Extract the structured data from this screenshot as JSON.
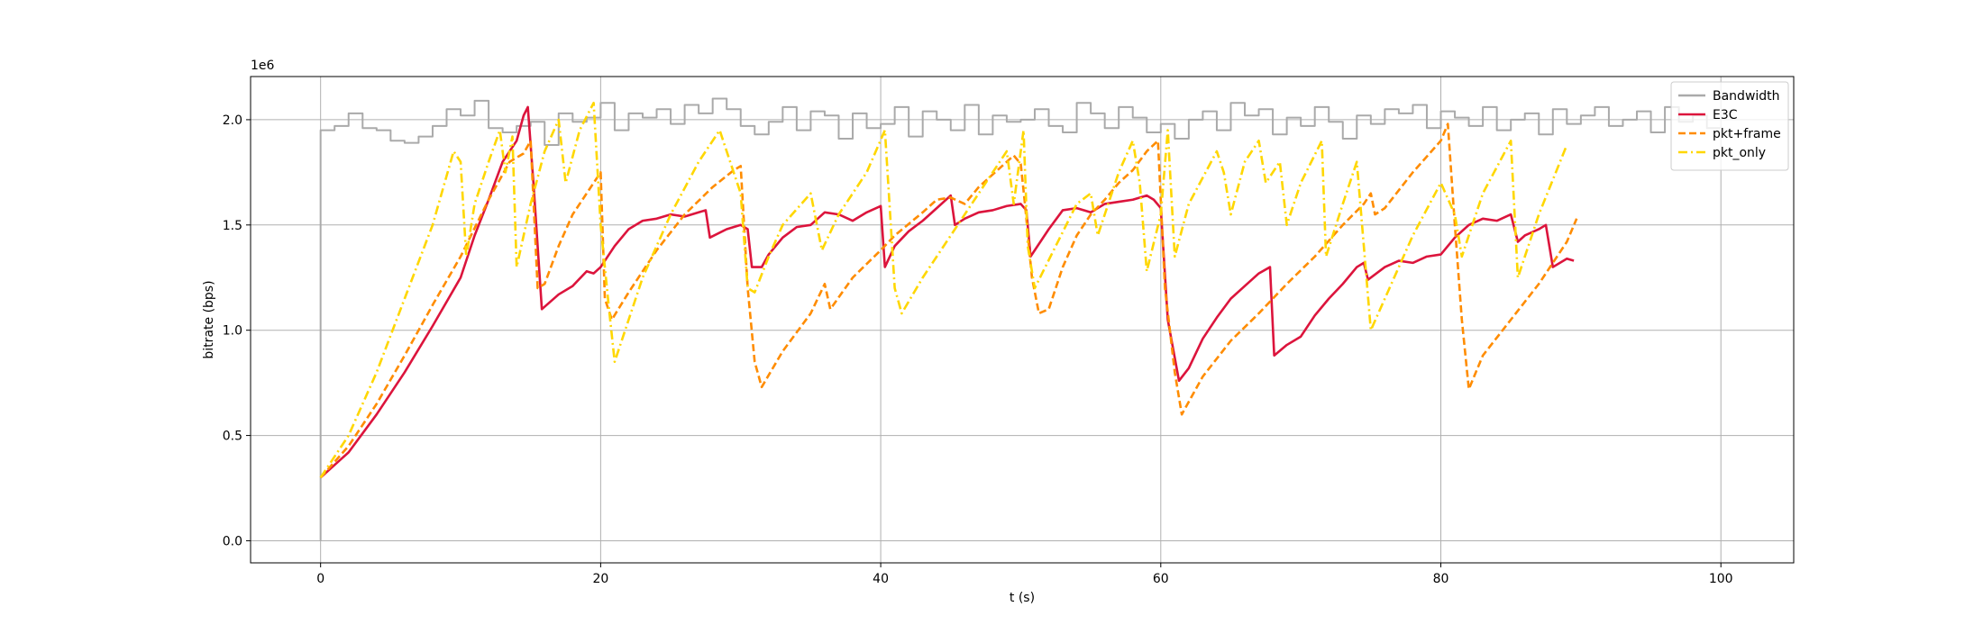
{
  "chart_data": {
    "type": "line",
    "x_label": "t (s)",
    "y_label": "bitrate (bps)",
    "y_offset_label": "1e6",
    "xlim": [
      -5,
      105.2
    ],
    "xticks": [
      0,
      20,
      40,
      60,
      80,
      100
    ],
    "ylim": [
      -0.105,
      2.205
    ],
    "yticks": [
      {
        "value": 0,
        "label": "0.0"
      },
      {
        "value": 0.5,
        "label": "0.5"
      },
      {
        "value": 1,
        "label": "1.0"
      },
      {
        "value": 1.5,
        "label": "1.5"
      },
      {
        "value": 2,
        "label": "2.0"
      }
    ],
    "grid": true,
    "legend": "upper right",
    "series": [
      {
        "name": "Bandwidth",
        "color": "#aaaaaa",
        "linestyle": "solid",
        "drawstyle": "steps-post",
        "x": [
          0,
          0,
          1,
          2,
          3,
          4,
          5,
          6,
          7,
          8,
          9,
          10,
          11,
          12,
          13,
          14,
          15,
          16,
          17,
          18,
          19,
          20,
          21,
          22,
          23,
          24,
          25,
          26,
          27,
          28,
          29,
          30,
          31,
          32,
          33,
          34,
          35,
          36,
          37,
          38,
          39,
          40,
          41,
          42,
          43,
          44,
          45,
          46,
          47,
          48,
          49,
          50,
          51,
          52,
          53,
          54,
          55,
          56,
          57,
          58,
          59,
          60,
          61,
          62,
          63,
          64,
          65,
          66,
          67,
          68,
          69,
          70,
          71,
          72,
          73,
          74,
          75,
          76,
          77,
          78,
          79,
          80,
          81,
          82,
          83,
          84,
          85,
          86,
          87,
          88,
          89,
          90,
          91,
          92,
          93,
          94,
          95,
          96,
          97,
          98,
          99,
          100
        ],
        "values": [
          0,
          1.95,
          1.97,
          2.03,
          1.96,
          1.95,
          1.9,
          1.89,
          1.92,
          1.97,
          2.05,
          2.02,
          2.09,
          1.96,
          1.94,
          1.97,
          1.99,
          1.88,
          2.03,
          1.99,
          2.01,
          2.08,
          1.95,
          2.03,
          2.01,
          2.05,
          1.98,
          2.07,
          2.03,
          2.1,
          2.05,
          1.97,
          1.93,
          1.99,
          2.06,
          1.95,
          2.04,
          2.02,
          1.91,
          2.03,
          1.96,
          1.98,
          2.06,
          1.92,
          2.04,
          2.0,
          1.95,
          2.07,
          1.93,
          2.02,
          1.99,
          2.0,
          2.05,
          1.97,
          1.94,
          2.08,
          2.03,
          1.96,
          2.06,
          2.01,
          1.94,
          1.98,
          1.91,
          2.0,
          2.04,
          1.95,
          2.08,
          2.02,
          2.05,
          1.93,
          2.01,
          1.97,
          2.06,
          1.99,
          1.91,
          2.02,
          1.98,
          2.05,
          2.03,
          2.07,
          1.96,
          2.04,
          2.01,
          1.97,
          2.06,
          1.95,
          2.0,
          2.03,
          1.93,
          2.05,
          1.98,
          2.02,
          2.06,
          1.97,
          2.0,
          2.04,
          1.94,
          2.06,
          1.99,
          2.02,
          1.96,
          1.96
        ]
      },
      {
        "name": "E3C",
        "color": "#dc143c",
        "linestyle": "solid",
        "drawstyle": "default",
        "x": [
          0,
          2,
          4,
          6,
          8,
          10,
          11,
          12,
          13,
          14,
          14.5,
          14.8,
          15.2,
          15.8,
          17,
          18,
          19,
          19.5,
          20,
          21,
          22,
          23,
          24,
          25,
          26,
          27,
          27.5,
          27.8,
          29,
          30,
          30.5,
          30.8,
          31.5,
          32,
          33,
          34,
          35,
          36,
          37,
          38,
          39,
          40,
          40.3,
          41,
          42,
          43,
          44,
          45,
          45.3,
          46,
          47,
          48,
          49,
          50,
          50.4,
          50.7,
          52,
          53,
          54,
          55,
          56,
          57,
          58,
          59,
          59.5,
          60,
          60.5,
          61.3,
          62,
          63,
          64,
          65,
          66,
          67,
          67.8,
          68.1,
          69,
          70,
          71,
          72,
          73,
          74,
          74.5,
          74.8,
          76,
          77,
          78,
          79,
          80,
          81,
          82,
          83,
          84,
          85,
          85.5,
          86,
          87,
          87.5,
          88,
          89,
          89.5
        ],
        "values": [
          0.3,
          0.42,
          0.6,
          0.8,
          1.02,
          1.25,
          1.45,
          1.62,
          1.8,
          1.9,
          2.02,
          2.06,
          1.7,
          1.1,
          1.17,
          1.21,
          1.28,
          1.27,
          1.3,
          1.4,
          1.48,
          1.52,
          1.53,
          1.55,
          1.54,
          1.56,
          1.57,
          1.44,
          1.48,
          1.5,
          1.48,
          1.3,
          1.3,
          1.36,
          1.44,
          1.49,
          1.5,
          1.56,
          1.55,
          1.52,
          1.56,
          1.59,
          1.3,
          1.4,
          1.47,
          1.52,
          1.58,
          1.64,
          1.5,
          1.53,
          1.56,
          1.57,
          1.59,
          1.6,
          1.57,
          1.35,
          1.48,
          1.57,
          1.58,
          1.56,
          1.6,
          1.61,
          1.62,
          1.64,
          1.62,
          1.58,
          1.05,
          0.76,
          0.82,
          0.96,
          1.06,
          1.15,
          1.21,
          1.27,
          1.3,
          0.88,
          0.93,
          0.97,
          1.07,
          1.15,
          1.22,
          1.3,
          1.32,
          1.24,
          1.3,
          1.33,
          1.32,
          1.35,
          1.36,
          1.44,
          1.5,
          1.53,
          1.52,
          1.55,
          1.42,
          1.45,
          1.48,
          1.5,
          1.3,
          1.34,
          1.33
        ]
      },
      {
        "name": "pkt+frame",
        "color": "#ff8c00",
        "linestyle": "dashed",
        "drawstyle": "default",
        "x": [
          0,
          2,
          4,
          6,
          8,
          10,
          12,
          13.5,
          14.5,
          15,
          15.5,
          16,
          17,
          18,
          19,
          20,
          20.3,
          20.8,
          22,
          24,
          26,
          28,
          29.5,
          30,
          30.5,
          31,
          31.5,
          33,
          35,
          36,
          36.4,
          38,
          40,
          41,
          43,
          44,
          45,
          46,
          47,
          48,
          49,
          49.5,
          50,
          50.3,
          50.8,
          51.3,
          52,
          53,
          54,
          55,
          56,
          57,
          58,
          59,
          59.8,
          60.3,
          61,
          61.5,
          63,
          65,
          67,
          69,
          71,
          73,
          74.5,
          75,
          75.3,
          76,
          78,
          80,
          80.5,
          81,
          81.5,
          82,
          83,
          85,
          87,
          89,
          89.7
        ],
        "values": [
          0.3,
          0.45,
          0.65,
          0.88,
          1.12,
          1.35,
          1.62,
          1.8,
          1.84,
          1.9,
          1.2,
          1.22,
          1.4,
          1.55,
          1.65,
          1.75,
          1.15,
          1.05,
          1.18,
          1.38,
          1.55,
          1.68,
          1.76,
          1.78,
          1.2,
          0.85,
          0.73,
          0.9,
          1.08,
          1.22,
          1.1,
          1.25,
          1.38,
          1.45,
          1.56,
          1.62,
          1.63,
          1.6,
          1.68,
          1.74,
          1.8,
          1.83,
          1.79,
          1.6,
          1.25,
          1.08,
          1.1,
          1.3,
          1.45,
          1.55,
          1.62,
          1.7,
          1.76,
          1.85,
          1.9,
          1.2,
          0.8,
          0.6,
          0.78,
          0.95,
          1.08,
          1.22,
          1.35,
          1.5,
          1.6,
          1.65,
          1.55,
          1.58,
          1.75,
          1.9,
          1.98,
          1.5,
          1.05,
          0.72,
          0.88,
          1.05,
          1.22,
          1.42,
          1.53
        ]
      },
      {
        "name": "pkt_only",
        "color": "#ffd700",
        "linestyle": "dashdot",
        "drawstyle": "default",
        "x": [
          0,
          2,
          4,
          6,
          8,
          9.5,
          10,
          10.4,
          11,
          12,
          12.8,
          13.2,
          13.7,
          14,
          15,
          16,
          17,
          17.5,
          18.5,
          19.5,
          20,
          20.6,
          21,
          22,
          23,
          25,
          27,
          28.5,
          29,
          30,
          30.5,
          31,
          32,
          33,
          35,
          35.8,
          37,
          39,
          40.3,
          41,
          41.5,
          43,
          45,
          47,
          49,
          49.5,
          50.2,
          50.5,
          51,
          52.5,
          54,
          55,
          55.5,
          57,
          58,
          58.5,
          59,
          60,
          60.5,
          61,
          62,
          64,
          64.5,
          65,
          66,
          67,
          67.5,
          68.5,
          69,
          70,
          71.5,
          71.8,
          73,
          74,
          75,
          76,
          78,
          80,
          81,
          81.5,
          83,
          85,
          85.5,
          87,
          89
        ],
        "values": [
          0.3,
          0.5,
          0.8,
          1.15,
          1.5,
          1.85,
          1.8,
          1.35,
          1.6,
          1.8,
          1.95,
          1.75,
          1.92,
          1.3,
          1.6,
          1.85,
          2.0,
          1.7,
          1.95,
          2.08,
          1.5,
          1.1,
          0.85,
          1.05,
          1.25,
          1.55,
          1.8,
          1.95,
          1.85,
          1.65,
          1.2,
          1.18,
          1.35,
          1.5,
          1.65,
          1.38,
          1.55,
          1.75,
          1.95,
          1.2,
          1.08,
          1.25,
          1.45,
          1.65,
          1.85,
          1.6,
          1.95,
          1.4,
          1.2,
          1.4,
          1.6,
          1.65,
          1.45,
          1.75,
          1.9,
          1.7,
          1.28,
          1.55,
          1.95,
          1.35,
          1.6,
          1.85,
          1.75,
          1.55,
          1.8,
          1.9,
          1.7,
          1.8,
          1.5,
          1.7,
          1.9,
          1.35,
          1.6,
          1.8,
          1.0,
          1.15,
          1.45,
          1.7,
          1.55,
          1.35,
          1.65,
          1.9,
          1.25,
          1.55,
          1.88
        ]
      }
    ]
  }
}
